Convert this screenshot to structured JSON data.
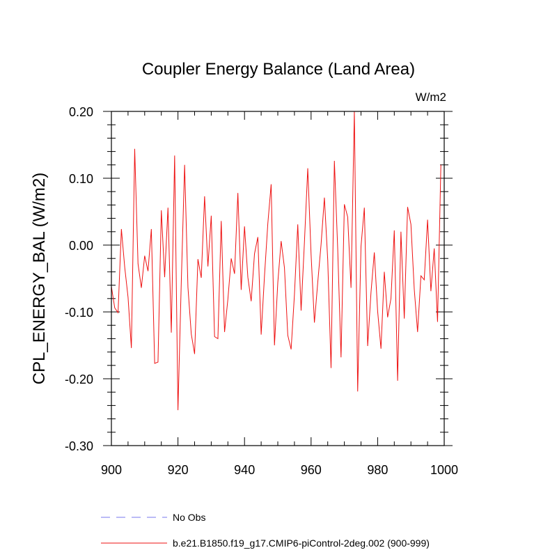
{
  "chart_data": {
    "type": "line",
    "title": "Coupler Energy Balance (Land Area)",
    "units": "W/m2",
    "ylabel": "CPL_ENERGY_BAL  (W/m2)",
    "xlabel": "",
    "xlim": [
      900,
      1000
    ],
    "ylim": [
      -0.3,
      0.2
    ],
    "x_ticks": [
      900,
      920,
      940,
      960,
      980,
      1000
    ],
    "x_tick_labels": [
      "900",
      "920",
      "940",
      "960",
      "980",
      "1000"
    ],
    "y_ticks": [
      -0.3,
      -0.2,
      -0.1,
      0.0,
      0.1,
      0.2
    ],
    "y_tick_labels": [
      "-0.30",
      "-0.20",
      "-0.10",
      "0.00",
      "0.10",
      "0.20"
    ],
    "grid": false,
    "legend_position": "bottom",
    "series": [
      {
        "name": "No Obs",
        "color": "#7777ee",
        "style": "dashed",
        "values": []
      },
      {
        "name": "b.e21.B1850.f19_g17.CMIP6-piControl-2deg.002 (900-999)",
        "color": "#ee1111",
        "style": "solid",
        "x_start": 900,
        "values": [
          -0.062,
          -0.094,
          -0.101,
          0.024,
          -0.033,
          -0.078,
          -0.154,
          0.144,
          -0.028,
          -0.064,
          -0.016,
          -0.039,
          0.024,
          -0.177,
          -0.175,
          0.052,
          -0.048,
          0.056,
          -0.131,
          0.134,
          -0.247,
          -0.055,
          0.12,
          -0.063,
          -0.133,
          -0.163,
          -0.021,
          -0.049,
          0.073,
          -0.032,
          0.044,
          -0.137,
          -0.14,
          0.036,
          -0.13,
          -0.081,
          -0.02,
          -0.043,
          0.078,
          -0.067,
          0.028,
          -0.048,
          -0.084,
          -0.013,
          0.012,
          -0.134,
          -0.046,
          0.032,
          0.091,
          -0.15,
          -0.056,
          0.006,
          -0.034,
          -0.135,
          -0.156,
          -0.074,
          0.031,
          -0.098,
          0.004,
          0.115,
          -0.014,
          -0.116,
          -0.056,
          0.001,
          0.071,
          -0.022,
          -0.184,
          0.126,
          -0.006,
          -0.168,
          0.061,
          0.042,
          -0.064,
          0.2,
          -0.219,
          -0.002,
          0.056,
          -0.151,
          -0.071,
          -0.011,
          -0.099,
          -0.155,
          -0.04,
          -0.108,
          -0.08,
          0.022,
          -0.203,
          0.02,
          -0.11,
          0.057,
          0.031,
          -0.066,
          -0.13,
          -0.046,
          -0.052,
          0.038,
          -0.069,
          -0.005,
          -0.115,
          0.12
        ]
      }
    ]
  }
}
